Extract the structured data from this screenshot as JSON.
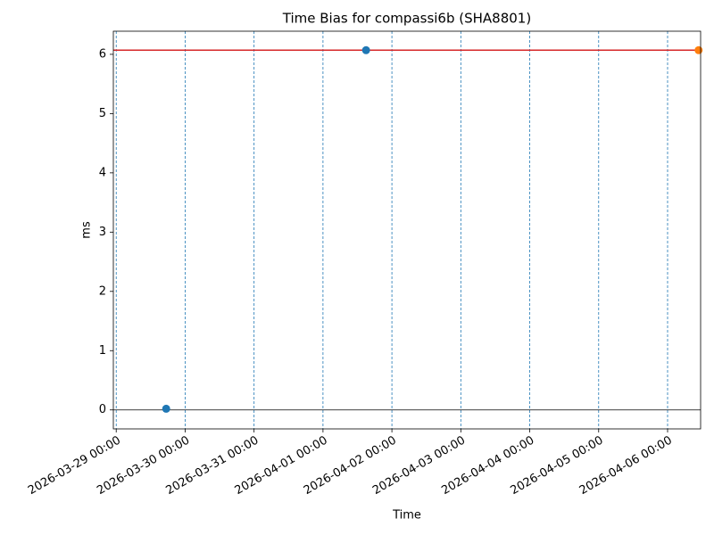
{
  "chart_data": {
    "type": "scatter",
    "title": "Time Bias for compassi6b (SHA8801)",
    "xlabel": "Time",
    "ylabel": "ms",
    "series": [
      {
        "color": "#1f77b4",
        "x": [
          "2026-03-29 17:24",
          "2026-04-01 15:00"
        ],
        "values": [
          0.02,
          6.07
        ]
      },
      {
        "color": "#ff7f0e",
        "x": [
          "2026-04-06 10:48"
        ],
        "values": [
          6.07
        ]
      }
    ],
    "reference_line": 6.07,
    "reference_color": "#d62728",
    "baseline": 0,
    "baseline_color": "#000000",
    "xgrid": true,
    "grid_color": "#1f77b4",
    "xlim": [
      "2026-03-28 23:00",
      "2026-04-06 11:30"
    ],
    "xticks": [
      "2026-03-29 00:00",
      "2026-03-30 00:00",
      "2026-03-31 00:00",
      "2026-04-01 00:00",
      "2026-04-02 00:00",
      "2026-04-03 00:00",
      "2026-04-04 00:00",
      "2026-04-05 00:00",
      "2026-04-06 00:00"
    ],
    "ylim": [
      -0.32,
      6.39
    ],
    "yticks": [
      0,
      1,
      2,
      3,
      4,
      5,
      6
    ]
  }
}
